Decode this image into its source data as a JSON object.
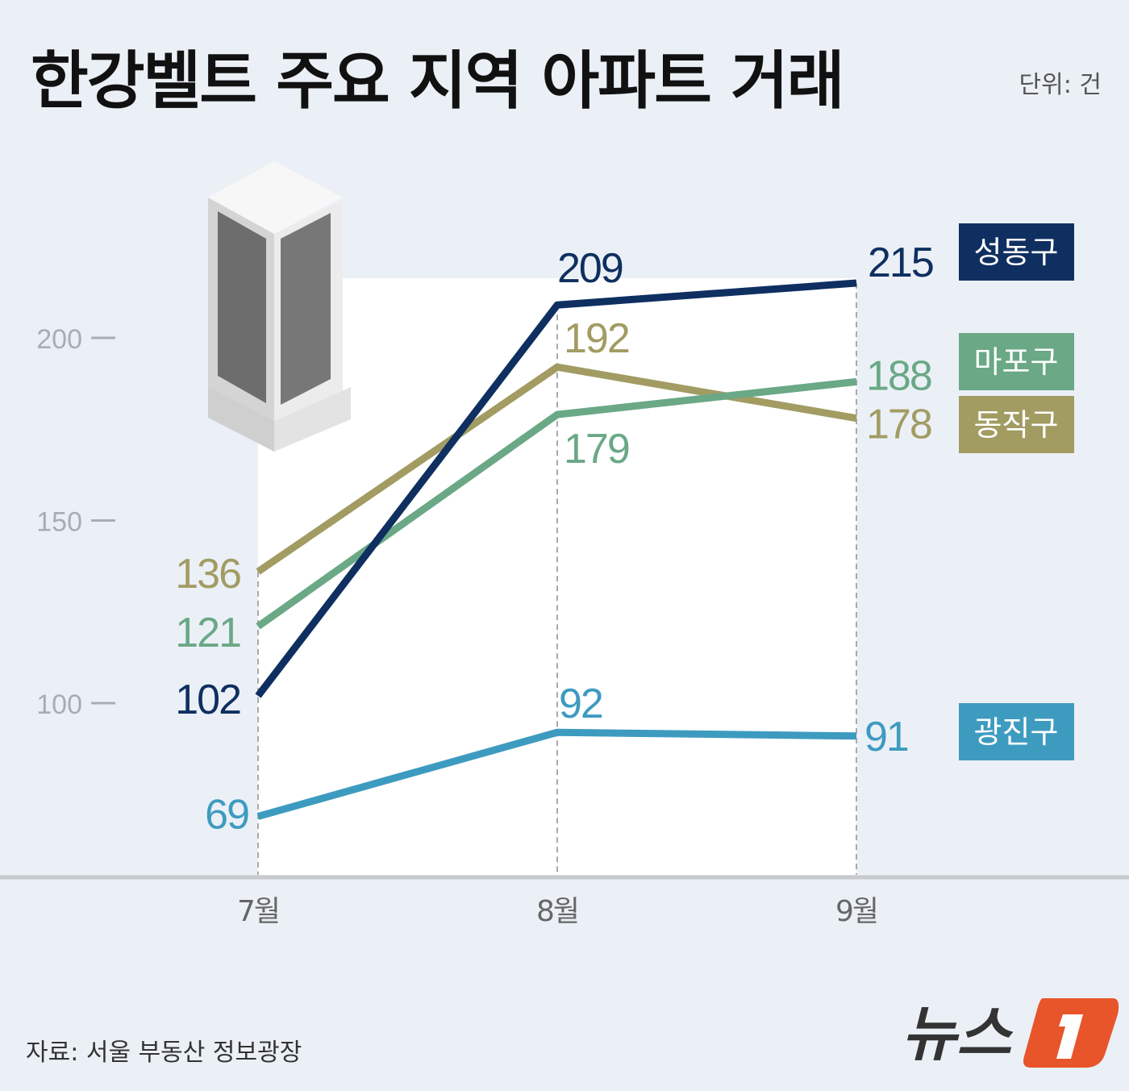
{
  "title": "한강벨트 주요 지역 아파트 거래",
  "unit_label": "단위: 건",
  "source": "자료: 서울 부동산 정보광장",
  "logo_text": "뉴스1",
  "chart_data": {
    "type": "line",
    "title": "한강벨트 주요 지역 아파트 거래",
    "categories": [
      "7월",
      "8월",
      "9월"
    ],
    "ylim": [
      50,
      230
    ],
    "yticks": [
      100,
      150,
      200
    ],
    "grid": false,
    "legend_placement": "right",
    "series": [
      {
        "name": "동작구",
        "values": [
          136,
          192,
          178
        ],
        "color": "#a29c63"
      },
      {
        "name": "마포구",
        "values": [
          121,
          179,
          188
        ],
        "color": "#6aa886"
      },
      {
        "name": "성동구",
        "values": [
          102,
          209,
          215
        ],
        "color": "#0f2f60"
      },
      {
        "name": "광진구",
        "values": [
          69,
          92,
          91
        ],
        "color": "#3e9bc0"
      }
    ]
  }
}
